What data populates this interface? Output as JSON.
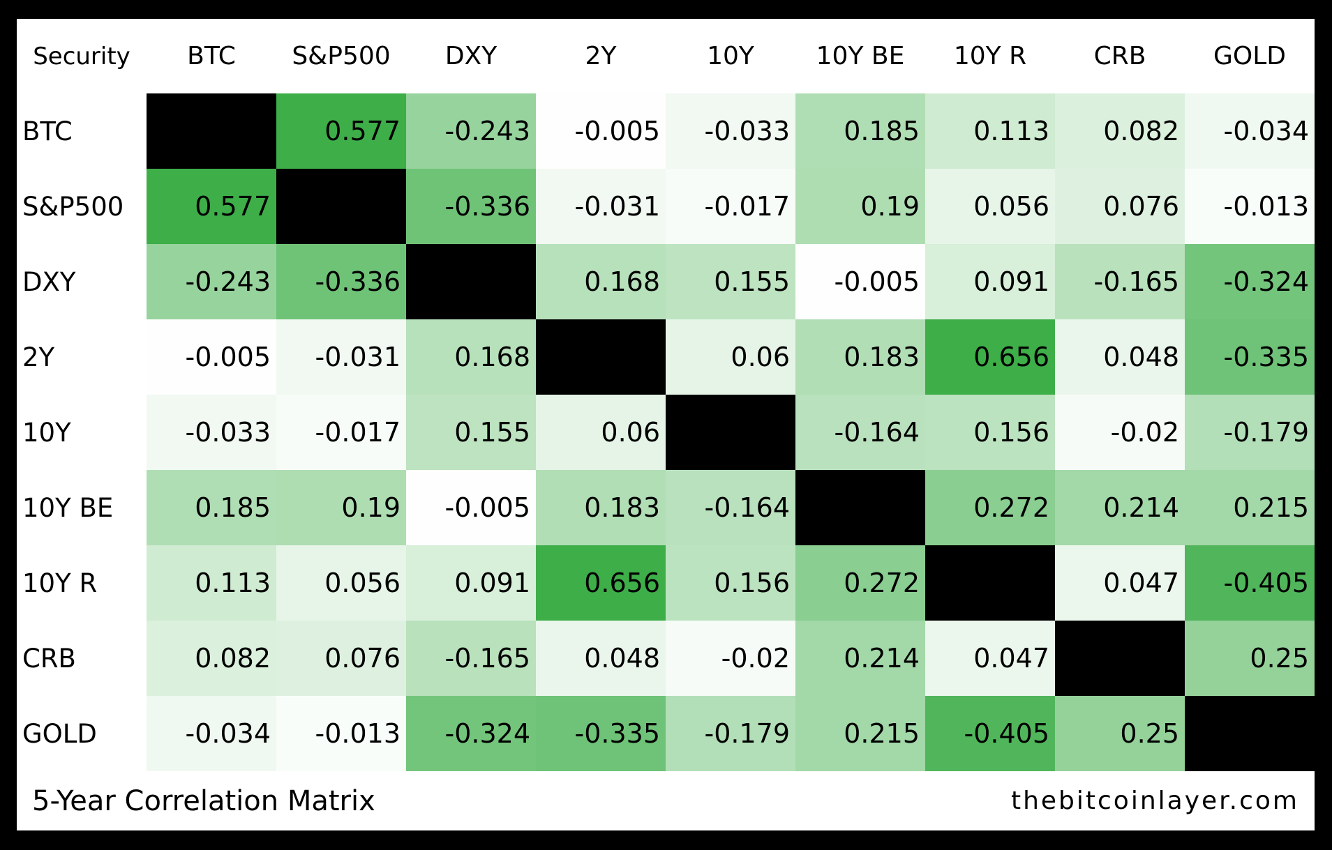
{
  "table": {
    "header": [
      "Security",
      "BTC",
      "S&P500",
      "DXY",
      "2Y",
      "10Y",
      "10Y BE",
      "10Y R",
      "CRB",
      "GOLD"
    ],
    "rows": [
      [
        "BTC",
        null,
        "0.577",
        "-0.243",
        "-0.005",
        "-0.033",
        "0.185",
        "0.113",
        "0.082",
        "-0.034"
      ],
      [
        "S&P500",
        "0.577",
        null,
        "-0.336",
        "-0.031",
        "-0.017",
        "0.19",
        "0.056",
        "0.076",
        "-0.013"
      ],
      [
        "DXY",
        "-0.243",
        "-0.336",
        null,
        "0.168",
        "0.155",
        "-0.005",
        "0.091",
        "-0.165",
        "-0.324"
      ],
      [
        "2Y",
        "-0.005",
        "-0.031",
        "0.168",
        null,
        "0.06",
        "0.183",
        "0.656",
        "0.048",
        "-0.335"
      ],
      [
        "10Y",
        "-0.033",
        "-0.017",
        "0.155",
        "0.06",
        null,
        "-0.164",
        "0.156",
        "-0.02",
        "-0.179"
      ],
      [
        "10Y BE",
        "0.185",
        "0.19",
        "-0.005",
        "0.183",
        "-0.164",
        null,
        "0.272",
        "0.214",
        "0.215"
      ],
      [
        "10Y R",
        "0.113",
        "0.056",
        "0.091",
        "0.656",
        "0.156",
        "0.272",
        null,
        "0.047",
        "-0.405"
      ],
      [
        "CRB",
        "0.082",
        "0.076",
        "-0.165",
        "0.048",
        "-0.02",
        "0.214",
        "0.047",
        null,
        "0.25"
      ],
      [
        "GOLD",
        "-0.034",
        "-0.013",
        "-0.324",
        "-0.335",
        "-0.179",
        "0.215",
        "-0.405",
        "0.25",
        null
      ]
    ]
  },
  "footer": {
    "title": "5-Year Correlation Matrix",
    "source": "thebitcoinlayer.com"
  }
}
